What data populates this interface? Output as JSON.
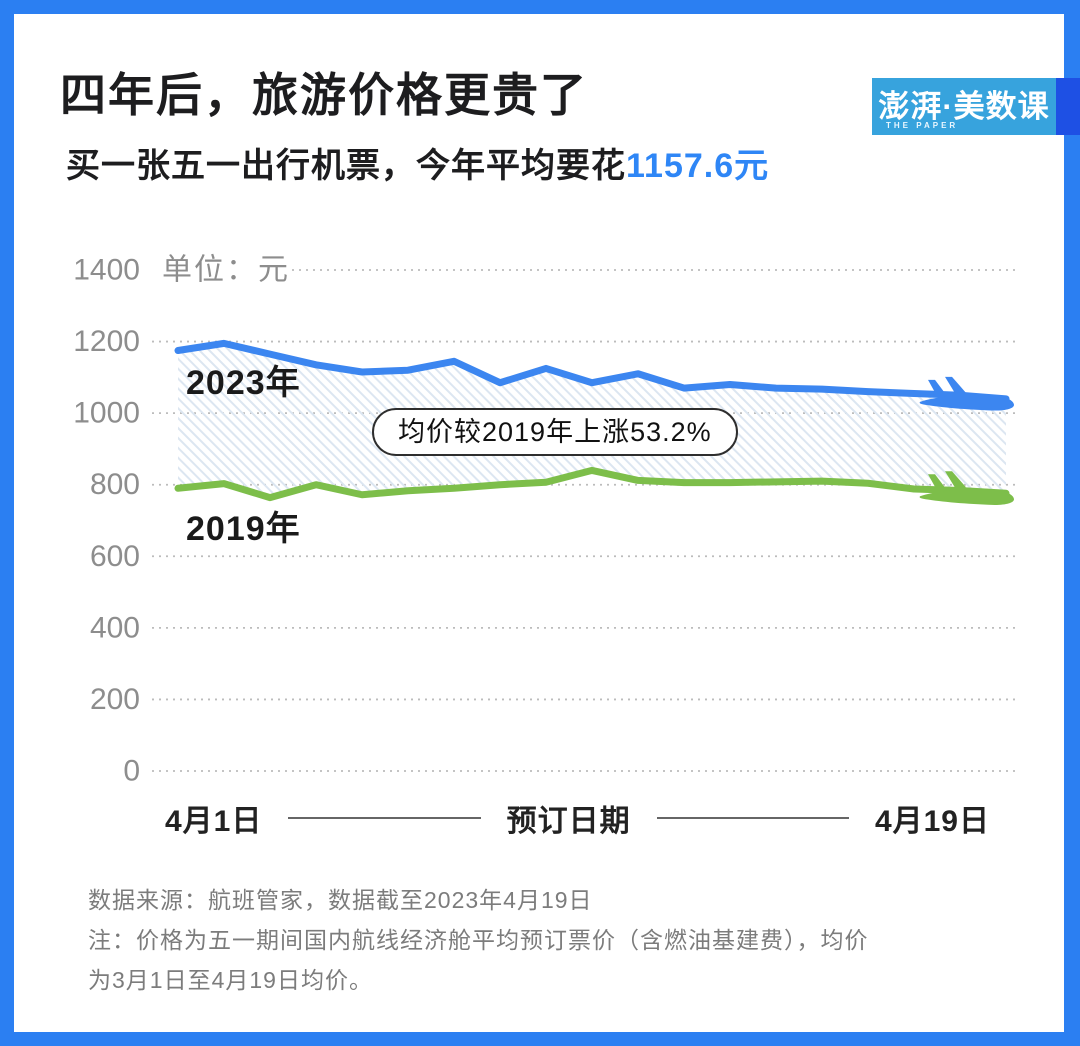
{
  "header": {
    "title": "四年后，旅游价格更贵了",
    "subtitle_prefix": "买一张五一出行机票，今年平均要花",
    "subtitle_highlight": "1157.6元"
  },
  "logo": {
    "name": "澎湃·美数课",
    "tagline": "THE PAPER"
  },
  "chart_data": {
    "type": "line",
    "unit_label": "单位：元",
    "ylim": [
      0,
      1400
    ],
    "ytick_step": 200,
    "grid": "dotted horizontal gridlines",
    "annotation": "均价较2019年上涨53.2%",
    "x_axis": {
      "start_label": "4月1日",
      "title": "预订日期",
      "end_label": "4月19日"
    },
    "series": [
      {
        "name": "2023年",
        "color": "#3C86F0",
        "values": [
          1175,
          1195,
          1165,
          1135,
          1115,
          1120,
          1145,
          1085,
          1125,
          1085,
          1110,
          1070,
          1080,
          1070,
          1067,
          1060,
          1055,
          1050,
          1040
        ]
      },
      {
        "name": "2019年",
        "color": "#7DBE4A",
        "values": [
          790,
          803,
          764,
          800,
          772,
          783,
          790,
          800,
          807,
          840,
          812,
          806,
          806,
          808,
          810,
          804,
          788,
          784,
          776
        ]
      }
    ],
    "band_between_series": "light diagonal hatch fill",
    "line_end_marker": "airplane silhouette"
  },
  "footer": {
    "lines": [
      "数据来源：航班管家，数据截至2023年4月19日",
      "注：价格为五一期间国内航线经济舱平均预订票价（含燃油基建费），均价",
      "为3月1日至4月19日均价。"
    ]
  },
  "colors": {
    "page_border": "#2B7FF2",
    "logo_bg": "#37A3DD",
    "logo_accent_block": "#1E50E4",
    "subtitle_highlight": "#2E86F6",
    "hatch": "#dce6f1",
    "gridline": "#bcbcbc",
    "tick_text": "#8d8d8d"
  }
}
